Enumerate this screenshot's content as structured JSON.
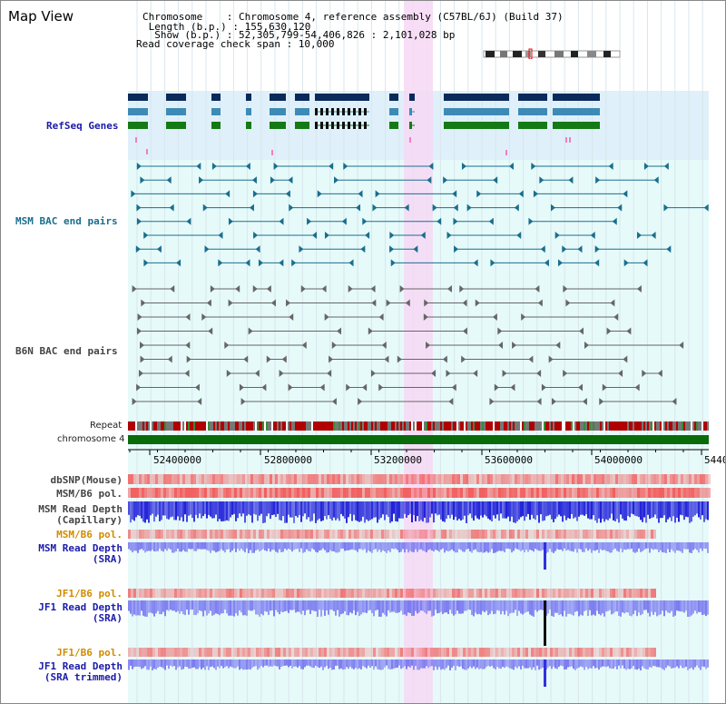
{
  "view": {
    "title": "Map View",
    "header_lines": [
      "Chromosome    : Chromosome 4, reference assembly (C57BL/6J) (Build 37)",
      " Length (b.p.) : 155,630,120",
      "  Show (b.p.) : 52,305,799-54,406,826 : 2,101,028 bp",
      "Read coverage check span : 10,000"
    ]
  },
  "tracks": {
    "refseq_label": "RefSeq Genes",
    "msm_bac_label": "MSM BAC end pairs",
    "b6n_bac_label": "B6N BAC end pairs",
    "repeat_label": "Repeat",
    "chromosome_label": "chromosome 4"
  },
  "axis": {
    "ticks": [
      "52400000",
      "52800000",
      "53200000",
      "53600000",
      "54000000",
      "5440"
    ]
  },
  "lower_tracks": [
    {
      "id": "dbsnp",
      "lines": [
        "dbSNP(Mouse)"
      ],
      "color": "#444444"
    },
    {
      "id": "msm-b6-pol-1",
      "lines": [
        "MSM/B6 pol."
      ],
      "color": "#444444"
    },
    {
      "id": "msm-read-depth-cap",
      "lines": [
        "MSM Read Depth",
        "(Capillary)"
      ],
      "color": "#444444"
    },
    {
      "id": "msm-b6-pol-2",
      "lines": [
        "MSM/B6 pol."
      ],
      "color": "#d08c00"
    },
    {
      "id": "msm-read-depth-sra",
      "lines": [
        "MSM Read Depth",
        "(SRA)"
      ],
      "color": "#1b1baa"
    },
    {
      "id": "jf1-b6-pol-1",
      "lines": [
        "JF1/B6 pol."
      ],
      "color": "#d08c00"
    },
    {
      "id": "jf1-read-depth-sra",
      "lines": [
        "JF1 Read Depth",
        "(SRA)"
      ],
      "color": "#1b1baa"
    },
    {
      "id": "jf1-b6-pol-2",
      "lines": [
        "JF1/B6 pol."
      ],
      "color": "#d08c00"
    },
    {
      "id": "jf1-read-depth-trim",
      "lines": [
        "JF1 Read Depth",
        "(SRA trimmed)"
      ],
      "color": "#1b1baa"
    }
  ],
  "colors": {
    "refseq_bg": "#dff0fa",
    "bac_bg": "#e6fafa",
    "highlight": "#f6d8f4",
    "gene_navy": "#0b2a5c",
    "gene_steel": "#3d8bb5",
    "gene_green": "#157a15",
    "chromosome": "#0a6b0a",
    "msm_line": "#1a6e8e",
    "b6n_line": "#666666",
    "depth_blue": "#1f1fd8",
    "depth_light": "#7b7bf0",
    "pol_red": "#f26060"
  }
}
